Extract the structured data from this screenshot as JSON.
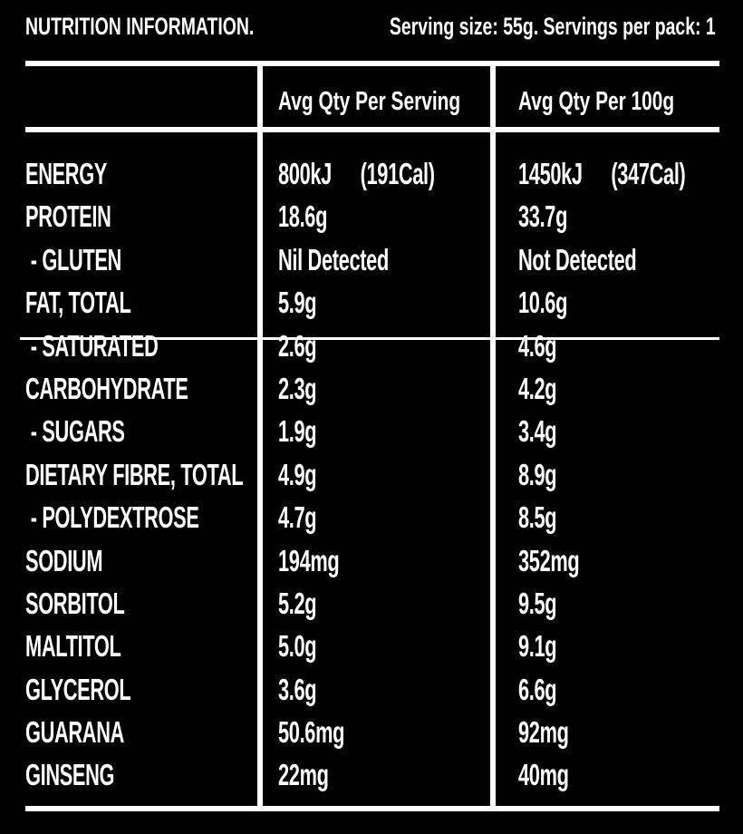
{
  "header": {
    "title": "NUTRITION INFORMATION.",
    "serving_info": "Serving size: 55g.  Servings per pack: 1"
  },
  "columns": {
    "per_serving": "Avg Qty Per Serving",
    "per_100g": "Avg Qty Per 100g"
  },
  "rows": [
    {
      "name": "ENERGY",
      "per_serving": "800kJ",
      "per_serving_extra": "(191Cal)",
      "per_100g": "1450kJ",
      "per_100g_extra": "(347Cal)"
    },
    {
      "name": "PROTEIN",
      "per_serving": "18.6g",
      "per_100g": "33.7g"
    },
    {
      "name": " - GLUTEN",
      "per_serving": "Nil Detected",
      "per_100g": "Not Detected"
    },
    {
      "name": "FAT, TOTAL",
      "per_serving": "5.9g",
      "per_100g": "10.6g"
    },
    {
      "name": " - SATURATED",
      "per_serving": "2.6g",
      "per_100g": "4.6g"
    },
    {
      "name": "CARBOHYDRATE",
      "per_serving": "2.3g",
      "per_100g": "4.2g"
    },
    {
      "name": " - SUGARS",
      "per_serving": "1.9g",
      "per_100g": "3.4g"
    },
    {
      "name": "DIETARY FIBRE, TOTAL",
      "per_serving": "4.9g",
      "per_100g": "8.9g"
    },
    {
      "name": " - POLYDEXTROSE",
      "per_serving": "4.7g",
      "per_100g": "8.5g"
    },
    {
      "name": "SODIUM",
      "per_serving": "194mg",
      "per_100g": "352mg"
    },
    {
      "name": "SORBITOL",
      "per_serving": "5.2g",
      "per_100g": "9.5g"
    },
    {
      "name": "MALTITOL",
      "per_serving": "5.0g",
      "per_100g": "9.1g"
    },
    {
      "name": "GLYCEROL",
      "per_serving": "3.6g",
      "per_100g": "6.6g"
    },
    {
      "name": "GUARANA",
      "per_serving": "50.6mg",
      "per_100g": "92mg"
    },
    {
      "name": "GINSENG",
      "per_serving": "22mg",
      "per_100g": "40mg"
    }
  ]
}
